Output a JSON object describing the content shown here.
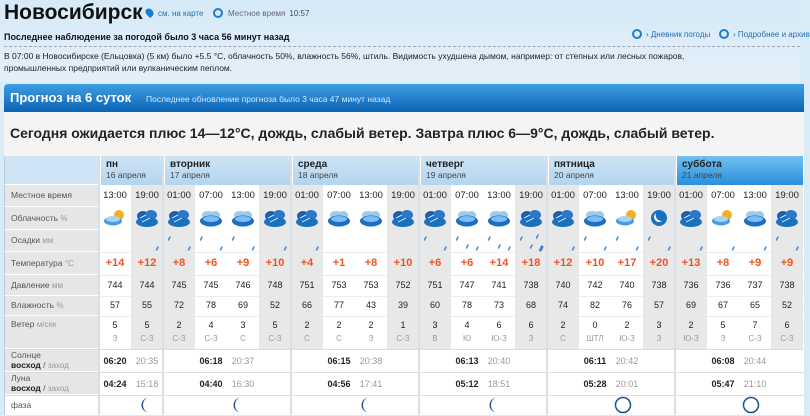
{
  "header": {
    "city": "Новосибирск",
    "map_link": "см. на карте",
    "local_time_label": "Местное время",
    "local_time": "10:57",
    "last_observation": "Последнее наблюдение за погодой было 3 часа 56 минут назад",
    "diary_link": "Дневник погоды",
    "archive_link": "Подробнее и архив",
    "observation_text": "В 07:00 в Новосибирске (Ельцовка) (5 км) было +5.5 °C, облачность 50%, влажность 56%, штиль. Видимость ухудшена дымом, например: от степных или лесных пожаров, промышленных предприятий или вулканическим пеплом."
  },
  "forecast": {
    "title": "Прогноз на 6 суток",
    "updated": "Последнее обновление прогноза было 3 часа 47 минут назад",
    "summary": "Сегодня ожидается плюс 14—12°C, дождь, слабый ветер. Завтра плюс 6—9°C, дождь, слабый ветер."
  },
  "row_labels": {
    "time": "Местное время",
    "cloud": "Облачность",
    "cloud_unit": "%",
    "precip": "Осадки",
    "precip_unit": "мм",
    "temp": "Температура",
    "temp_unit": "°C",
    "pressure": "Давление",
    "pressure_unit": "мм",
    "humidity": "Влажность",
    "humidity_unit": "%",
    "wind": "Ветер",
    "wind_unit": "м/сек",
    "sun": "Солнце",
    "moon": "Луна",
    "rise": "восход",
    "set": "заход",
    "phase": "фаза"
  },
  "colors": {
    "temp": "#f4511e",
    "header_blue": "#0a63b4",
    "icon_blue": "#1a6fc0"
  },
  "days": [
    {
      "name": "пн",
      "date": "16 апреля",
      "today": false,
      "sunrise": "06:20",
      "sunset": "20:35",
      "moonrise": "04:24",
      "moonset": "15:18",
      "moon_phase": "waning-crescent",
      "slots": [
        {
          "time": "13:00",
          "cloud": "partly-sunny",
          "precip": 0,
          "temp": "+14",
          "pressure": "744",
          "humidity": "57",
          "wind": "5",
          "dir": "З",
          "night": false
        },
        {
          "time": "19:00",
          "cloud": "overcast",
          "precip": 1,
          "temp": "+12",
          "pressure": "744",
          "humidity": "55",
          "wind": "5",
          "dir": "С-З",
          "night": true
        }
      ]
    },
    {
      "name": "вторник",
      "date": "17 апреля",
      "today": false,
      "sunrise": "06:18",
      "sunset": "20:37",
      "moonrise": "04:40",
      "moonset": "16:30",
      "moon_phase": "waning-crescent",
      "slots": [
        {
          "time": "01:00",
          "cloud": "overcast",
          "precip": 2,
          "temp": "+8",
          "pressure": "745",
          "humidity": "72",
          "wind": "2",
          "dir": "С-З",
          "night": true
        },
        {
          "time": "07:00",
          "cloud": "cloudy",
          "precip": 2,
          "temp": "+6",
          "pressure": "745",
          "humidity": "78",
          "wind": "4",
          "dir": "С-З",
          "night": false
        },
        {
          "time": "13:00",
          "cloud": "cloudy",
          "precip": 2,
          "temp": "+9",
          "pressure": "746",
          "humidity": "69",
          "wind": "3",
          "dir": "С",
          "night": false
        },
        {
          "time": "19:00",
          "cloud": "overcast",
          "precip": 1,
          "temp": "+10",
          "pressure": "748",
          "humidity": "52",
          "wind": "5",
          "dir": "С-З",
          "night": true
        }
      ]
    },
    {
      "name": "среда",
      "date": "18 апреля",
      "today": false,
      "sunrise": "06:15",
      "sunset": "20:38",
      "moonrise": "04:56",
      "moonset": "17:41",
      "moon_phase": "waning-crescent",
      "slots": [
        {
          "time": "01:00",
          "cloud": "overcast",
          "precip": 1,
          "temp": "+4",
          "pressure": "751",
          "humidity": "66",
          "wind": "2",
          "dir": "С",
          "night": true
        },
        {
          "time": "07:00",
          "cloud": "cloudy",
          "precip": 0,
          "temp": "+1",
          "pressure": "753",
          "humidity": "77",
          "wind": "2",
          "dir": "С",
          "night": false
        },
        {
          "time": "13:00",
          "cloud": "cloudy",
          "precip": 0,
          "temp": "+8",
          "pressure": "753",
          "humidity": "43",
          "wind": "2",
          "dir": "З",
          "night": false
        },
        {
          "time": "19:00",
          "cloud": "overcast",
          "precip": 0,
          "temp": "+10",
          "pressure": "752",
          "humidity": "39",
          "wind": "1",
          "dir": "С-З",
          "night": true
        }
      ]
    },
    {
      "name": "четверг",
      "date": "19 апреля",
      "today": false,
      "sunrise": "06:13",
      "sunset": "20:40",
      "moonrise": "05:12",
      "moonset": "18:51",
      "moon_phase": "waning-crescent",
      "slots": [
        {
          "time": "01:00",
          "cloud": "overcast",
          "precip": 2,
          "temp": "+6",
          "pressure": "751",
          "humidity": "60",
          "wind": "3",
          "dir": "В",
          "night": true
        },
        {
          "time": "07:00",
          "cloud": "cloudy",
          "precip": 3,
          "temp": "+6",
          "pressure": "747",
          "humidity": "78",
          "wind": "4",
          "dir": "Ю",
          "night": false
        },
        {
          "time": "13:00",
          "cloud": "cloudy",
          "precip": 3,
          "temp": "+14",
          "pressure": "741",
          "humidity": "73",
          "wind": "6",
          "dir": "Ю-З",
          "night": false
        },
        {
          "time": "19:00",
          "cloud": "overcast",
          "precip": 4,
          "temp": "+18",
          "pressure": "738",
          "humidity": "68",
          "wind": "6",
          "dir": "З",
          "night": true
        }
      ]
    },
    {
      "name": "пятница",
      "date": "20 апреля",
      "today": false,
      "sunrise": "06:11",
      "sunset": "20:42",
      "moonrise": "05:28",
      "moonset": "20:01",
      "moon_phase": "new-moon",
      "slots": [
        {
          "time": "01:00",
          "cloud": "overcast",
          "precip": 1,
          "temp": "+12",
          "pressure": "740",
          "humidity": "74",
          "wind": "2",
          "dir": "С",
          "night": true
        },
        {
          "time": "07:00",
          "cloud": "cloudy",
          "precip": 2,
          "temp": "+10",
          "pressure": "742",
          "humidity": "82",
          "wind": "0",
          "dir": "ШТЛ",
          "night": false
        },
        {
          "time": "13:00",
          "cloud": "partly-sunny",
          "precip": 2,
          "temp": "+17",
          "pressure": "740",
          "humidity": "76",
          "wind": "2",
          "dir": "Ю-З",
          "night": false
        },
        {
          "time": "19:00",
          "cloud": "night-cloud",
          "precip": 2,
          "temp": "+20",
          "pressure": "738",
          "humidity": "57",
          "wind": "3",
          "dir": "З",
          "night": true
        }
      ]
    },
    {
      "name": "суббота",
      "date": "21 апреля",
      "today": true,
      "sunrise": "06:08",
      "sunset": "20:44",
      "moonrise": "05:47",
      "moonset": "21:10",
      "moon_phase": "new-moon",
      "slots": [
        {
          "time": "01:00",
          "cloud": "overcast",
          "precip": 1,
          "temp": "+13",
          "pressure": "736",
          "humidity": "69",
          "wind": "2",
          "dir": "Ю-З",
          "night": true
        },
        {
          "time": "07:00",
          "cloud": "partly-sunny",
          "precip": 1,
          "temp": "+8",
          "pressure": "736",
          "humidity": "67",
          "wind": "5",
          "dir": "З",
          "night": false
        },
        {
          "time": "13:00",
          "cloud": "cloudy",
          "precip": 1,
          "temp": "+9",
          "pressure": "737",
          "humidity": "65",
          "wind": "7",
          "dir": "С-З",
          "night": false
        },
        {
          "time": "19:00",
          "cloud": "overcast",
          "precip": 2,
          "temp": "+9",
          "pressure": "738",
          "humidity": "52",
          "wind": "6",
          "dir": "С-З",
          "night": true
        }
      ]
    }
  ]
}
